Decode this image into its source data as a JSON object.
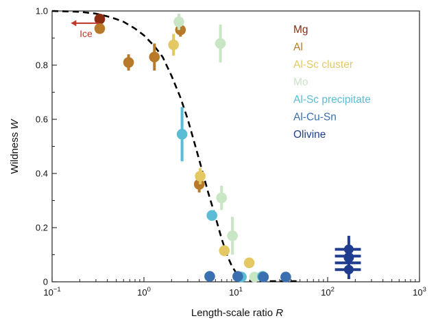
{
  "chart_data": {
    "type": "scatter",
    "title": "",
    "xlabel": "Length-scale ratio",
    "xlabel_var": "R",
    "ylabel": "Wildness",
    "ylabel_var": "W",
    "xscale": "log",
    "xlim": [
      0.1,
      1000
    ],
    "ylim": [
      0,
      1.0
    ],
    "x_ticks": [
      {
        "value": 0.1,
        "base": "10",
        "exp": "−1"
      },
      {
        "value": 1,
        "base": "10",
        "exp": "0"
      },
      {
        "value": 10,
        "base": "10",
        "exp": "1"
      },
      {
        "value": 100,
        "base": "10",
        "exp": "2"
      },
      {
        "value": 1000,
        "base": "10",
        "exp": "3"
      }
    ],
    "y_ticks": [
      {
        "value": 0,
        "label": "0"
      },
      {
        "value": 0.2,
        "label": "0.2"
      },
      {
        "value": 0.4,
        "label": "0.4"
      },
      {
        "value": 0.6,
        "label": "0.6"
      },
      {
        "value": 0.8,
        "label": "0.8"
      },
      {
        "value": 1.0,
        "label": "1.0"
      }
    ],
    "grid": false,
    "legend_placement": "top-right",
    "model_curve": {
      "style": "dashed",
      "color": "#000000",
      "x": [
        0.1,
        0.2,
        0.3,
        0.4,
        0.5,
        0.6,
        0.8,
        1.0,
        1.3,
        1.6,
        2.0,
        2.5,
        3.0,
        3.5,
        4.0,
        5.0,
        6.0,
        7.0,
        8.0,
        9.0,
        10.0,
        11.0,
        12.0,
        13.0,
        15.0,
        18.0,
        20.0,
        30.0,
        40.0,
        50.0
      ],
      "y": [
        1.0,
        0.997,
        0.99,
        0.98,
        0.97,
        0.96,
        0.935,
        0.91,
        0.87,
        0.83,
        0.76,
        0.68,
        0.6,
        0.52,
        0.45,
        0.33,
        0.24,
        0.16,
        0.1,
        0.06,
        0.035,
        0.02,
        0.012,
        0.007,
        0.003,
        0.001,
        0.0,
        0.0,
        0.0,
        0.0
      ]
    },
    "annotation": {
      "text": "Ice",
      "color": "#c0392b",
      "arrow_direction": "left",
      "x_from": 0.32,
      "x_to": 0.16,
      "y": 0.96
    },
    "series": [
      {
        "name": "Mg",
        "color": "#8a2b10",
        "points": [
          {
            "x": 0.33,
            "y": 0.97,
            "err": 0.01
          }
        ]
      },
      {
        "name": "Al",
        "color": "#b87a28",
        "points": [
          {
            "x": 0.33,
            "y": 0.935,
            "err": 0.015
          },
          {
            "x": 0.68,
            "y": 0.81,
            "err": 0.03
          },
          {
            "x": 1.3,
            "y": 0.83,
            "err": 0.05
          },
          {
            "x": 2.5,
            "y": 0.93,
            "err": 0.025
          },
          {
            "x": 4.0,
            "y": 0.36,
            "err": 0.03
          }
        ]
      },
      {
        "name": "Al-Sc cluster",
        "color": "#e3c864",
        "points": [
          {
            "x": 2.1,
            "y": 0.875,
            "err": 0.04
          },
          {
            "x": 4.1,
            "y": 0.39,
            "err": 0.03
          },
          {
            "x": 7.5,
            "y": 0.115,
            "err": 0.02
          },
          {
            "x": 14.0,
            "y": 0.07,
            "err": 0.015
          }
        ]
      },
      {
        "name": "Mo",
        "color": "#c8e6c4",
        "points": [
          {
            "x": 2.4,
            "y": 0.96,
            "err": 0.03
          },
          {
            "x": 6.8,
            "y": 0.88,
            "err": 0.07
          },
          {
            "x": 7.0,
            "y": 0.31,
            "err": 0.045
          },
          {
            "x": 9.2,
            "y": 0.17,
            "err": 0.07
          },
          {
            "x": 16.0,
            "y": 0.01,
            "err": 0.01
          }
        ]
      },
      {
        "name": "Al-Sc precipitate",
        "color": "#5bbcd6",
        "points": [
          {
            "x": 2.6,
            "y": 0.545,
            "err": 0.1
          },
          {
            "x": 5.5,
            "y": 0.245,
            "err": 0.01
          },
          {
            "x": 11.5,
            "y": 0.015,
            "err": 0.01
          },
          {
            "x": 19.5,
            "y": 0.02,
            "err": 0.01
          }
        ]
      },
      {
        "name": "Al-Cu-Sn",
        "color": "#3a6fb0",
        "points": [
          {
            "x": 5.2,
            "y": 0.02,
            "err": 0.01
          },
          {
            "x": 10.5,
            "y": 0.02,
            "err": 0.01
          },
          {
            "x": 20.0,
            "y": 0.005,
            "err": 0.008
          },
          {
            "x": 35.0,
            "y": 0.0,
            "err": 0.005
          }
        ]
      },
      {
        "name": "Olivine",
        "color": "#1f3c8f",
        "points": [
          {
            "x": 170,
            "y": 0.09,
            "err": 0.08,
            "xerr_low": 120,
            "xerr_high": 230,
            "y_stack": [
              0.045,
              0.07,
              0.095,
              0.12
            ]
          }
        ]
      }
    ]
  }
}
